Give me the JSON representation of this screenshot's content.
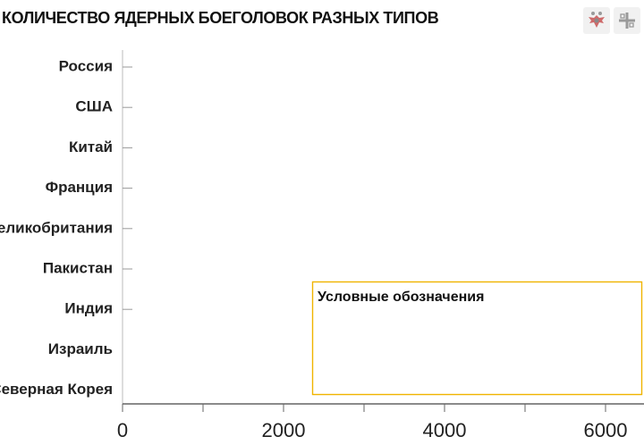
{
  "header": {
    "title": "КОЛИЧЕСТВО ЯДЕРНЫХ БОЕГОЛОВОК РАЗНЫХ ТИПОВ",
    "icons": [
      "eagle-emblem-icon",
      "cross-emblem-icon"
    ]
  },
  "chart_data": {
    "type": "bar",
    "orientation": "horizontal",
    "title": "КОЛИЧЕСТВО ЯДЕРНЫХ БОЕГОЛОВОК РАЗНЫХ ТИПОВ",
    "categories": [
      "Россия",
      "США",
      "Китай",
      "Франция",
      "Великобритания",
      "Пакистан",
      "Индия",
      "Израиль",
      "Северная Корея"
    ],
    "series": [],
    "xlim": [
      0,
      6500
    ],
    "xticks": [
      0,
      2000,
      4000,
      6000
    ],
    "grid": false,
    "legend": {
      "title": "Условные обозначения",
      "placement": "bottom-right",
      "border_color": "#f0b400"
    }
  }
}
